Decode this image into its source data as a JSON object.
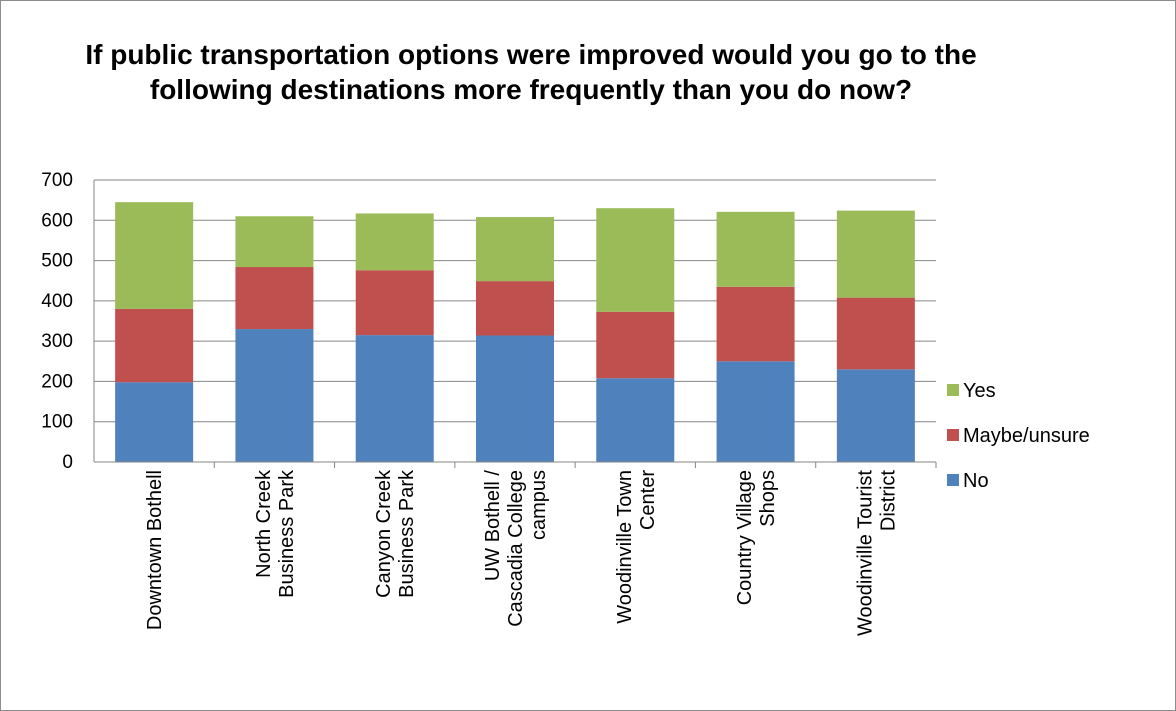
{
  "chart_data": {
    "type": "bar",
    "stacked": true,
    "title": "If public transportation options were improved would you go to the following destinations more frequently than you do now?",
    "categories": [
      "Downtown Bothell",
      "North Creek Business Park",
      "Canyon Creek Business Park",
      "UW Bothell / Cascadia College campus",
      "Woodinville Town Center",
      "Country Village Shops",
      "Woodinville Tourist District"
    ],
    "category_lines": [
      [
        "Downtown Bothell"
      ],
      [
        "North Creek",
        "Business Park"
      ],
      [
        "Canyon Creek",
        "Business Park"
      ],
      [
        "UW Bothell /",
        "Cascadia College",
        "campus"
      ],
      [
        "Woodinville Town",
        "Center"
      ],
      [
        "Country Village",
        "Shops"
      ],
      [
        "Woodinville Tourist",
        "District"
      ]
    ],
    "series": [
      {
        "name": "No",
        "color": "#4f81bd",
        "values": [
          198,
          330,
          315,
          314,
          208,
          250,
          230
        ]
      },
      {
        "name": "Maybe/unsure",
        "color": "#c0504d",
        "values": [
          182,
          154,
          161,
          135,
          165,
          185,
          178
        ]
      },
      {
        "name": "Yes",
        "color": "#9bbb59",
        "values": [
          265,
          126,
          141,
          159,
          257,
          186,
          216
        ]
      }
    ],
    "legend_order": [
      "Yes",
      "Maybe/unsure",
      "No"
    ],
    "legend_position": "right",
    "ylim": [
      0,
      700
    ],
    "yticks": [
      "0",
      "100",
      "200",
      "300",
      "400",
      "500",
      "600",
      "700"
    ],
    "grid": true,
    "xlabel": "",
    "ylabel": ""
  }
}
